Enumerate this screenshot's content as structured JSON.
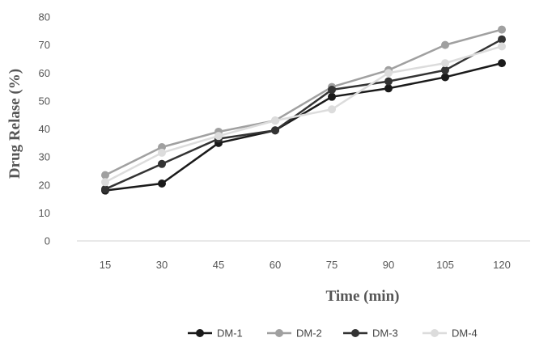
{
  "chart_data": {
    "type": "line",
    "title": "",
    "xlabel": "Time (min)",
    "ylabel": "Drug Relase (%)",
    "categories": [
      "15",
      "30",
      "45",
      "60",
      "75",
      "90",
      "105",
      "120"
    ],
    "ylim": [
      0,
      80
    ],
    "yticks": [
      "0",
      "10",
      "20",
      "30",
      "40",
      "50",
      "60",
      "70",
      "80"
    ],
    "grid": false,
    "legend_position": "bottom",
    "series": [
      {
        "name": "DM-1",
        "color": "#1a1a1a",
        "values": [
          18,
          20.5,
          35,
          39.5,
          51.5,
          54.5,
          58.5,
          63.5
        ]
      },
      {
        "name": "DM-2",
        "color": "#a0a0a0",
        "values": [
          23.5,
          33.5,
          39,
          43,
          55,
          61,
          70,
          75.5
        ]
      },
      {
        "name": "DM-3",
        "color": "#333333",
        "values": [
          18.5,
          27.5,
          36.5,
          39.5,
          54,
          57,
          61,
          72
        ]
      },
      {
        "name": "DM-4",
        "color": "#dcdcdc",
        "values": [
          21,
          31.5,
          37.5,
          43,
          47,
          60,
          63.5,
          69.5
        ]
      }
    ]
  }
}
